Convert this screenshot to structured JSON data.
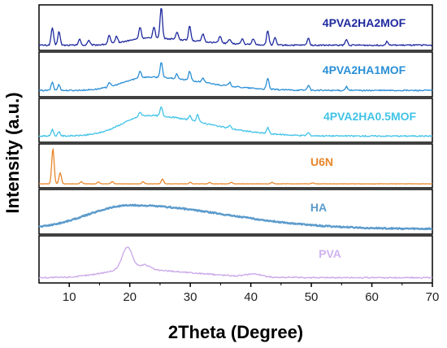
{
  "chart_data": {
    "type": "line",
    "title": "",
    "xlabel": "2Theta (Degree)",
    "ylabel": "Intensity (a.u.)",
    "xlim": [
      5,
      70
    ],
    "xticks": [
      10,
      20,
      30,
      40,
      50,
      60,
      70
    ],
    "grid": false,
    "legend_placement": "inline labels, right side of each panel",
    "series": [
      {
        "name": "4PVA2HA2MOF",
        "color": "#1f2a9e",
        "peaks": [
          [
            7.2,
            0.45
          ],
          [
            8.3,
            0.35
          ],
          [
            11.7,
            0.15
          ],
          [
            13.2,
            0.12
          ],
          [
            16.6,
            0.22
          ],
          [
            17.8,
            0.18
          ],
          [
            21.7,
            0.3
          ],
          [
            24.0,
            0.3
          ],
          [
            25.2,
            0.8
          ],
          [
            27.8,
            0.2
          ],
          [
            29.9,
            0.38
          ],
          [
            32.1,
            0.2
          ],
          [
            34.9,
            0.18
          ],
          [
            36.5,
            0.12
          ],
          [
            38.6,
            0.14
          ],
          [
            40.4,
            0.16
          ],
          [
            42.8,
            0.36
          ],
          [
            44.0,
            0.18
          ],
          [
            49.5,
            0.18
          ],
          [
            55.8,
            0.14
          ],
          [
            62.5,
            0.1
          ]
        ],
        "baseline": 0.05,
        "hump": [
          23,
          7,
          0.18
        ]
      },
      {
        "name": "4PVA2HA1MOF",
        "color": "#2a8fd6",
        "peaks": [
          [
            7.2,
            0.22
          ],
          [
            8.3,
            0.15
          ],
          [
            16.6,
            0.12
          ],
          [
            21.7,
            0.18
          ],
          [
            25.2,
            0.4
          ],
          [
            27.8,
            0.12
          ],
          [
            29.9,
            0.24
          ],
          [
            32.1,
            0.12
          ],
          [
            36.5,
            0.1
          ],
          [
            42.8,
            0.28
          ],
          [
            49.5,
            0.13
          ],
          [
            55.8,
            0.1
          ]
        ],
        "baseline": 0.08,
        "hump": [
          23,
          8,
          0.35
        ]
      },
      {
        "name": "4PVA2HA0.5MOF",
        "color": "#41c3e6",
        "peaks": [
          [
            7.2,
            0.18
          ],
          [
            8.3,
            0.12
          ],
          [
            21.7,
            0.12
          ],
          [
            25.2,
            0.24
          ],
          [
            29.9,
            0.12
          ],
          [
            31.2,
            0.2
          ],
          [
            36.5,
            0.08
          ],
          [
            42.8,
            0.16
          ],
          [
            49.5,
            0.08
          ]
        ],
        "baseline": 0.08,
        "hump": [
          23,
          8.5,
          0.55
        ]
      },
      {
        "name": "U6N",
        "color": "#e8862a",
        "peaks": [
          [
            7.3,
            0.95
          ],
          [
            8.5,
            0.3
          ],
          [
            12.0,
            0.06
          ],
          [
            14.8,
            0.05
          ],
          [
            17.1,
            0.06
          ],
          [
            22.2,
            0.06
          ],
          [
            25.4,
            0.13
          ],
          [
            30.0,
            0.04
          ],
          [
            33.2,
            0.04
          ],
          [
            36.8,
            0.04
          ],
          [
            43.5,
            0.04
          ],
          [
            50.2,
            0.03
          ]
        ],
        "baseline": 0.02,
        "hump": [
          20,
          10,
          0.0
        ]
      },
      {
        "name": "HA",
        "color": "#5b9bcc",
        "peaks": [],
        "baseline": 0.05,
        "hump": [
          20,
          14,
          0.62
        ]
      },
      {
        "name": "PVA",
        "color": "#c9a6e8",
        "peaks": [
          [
            19.6,
            0.55
          ],
          [
            22.5,
            0.12
          ],
          [
            40.5,
            0.07
          ]
        ],
        "baseline": 0.05,
        "hump": [
          20,
          9,
          0.2
        ]
      }
    ]
  }
}
